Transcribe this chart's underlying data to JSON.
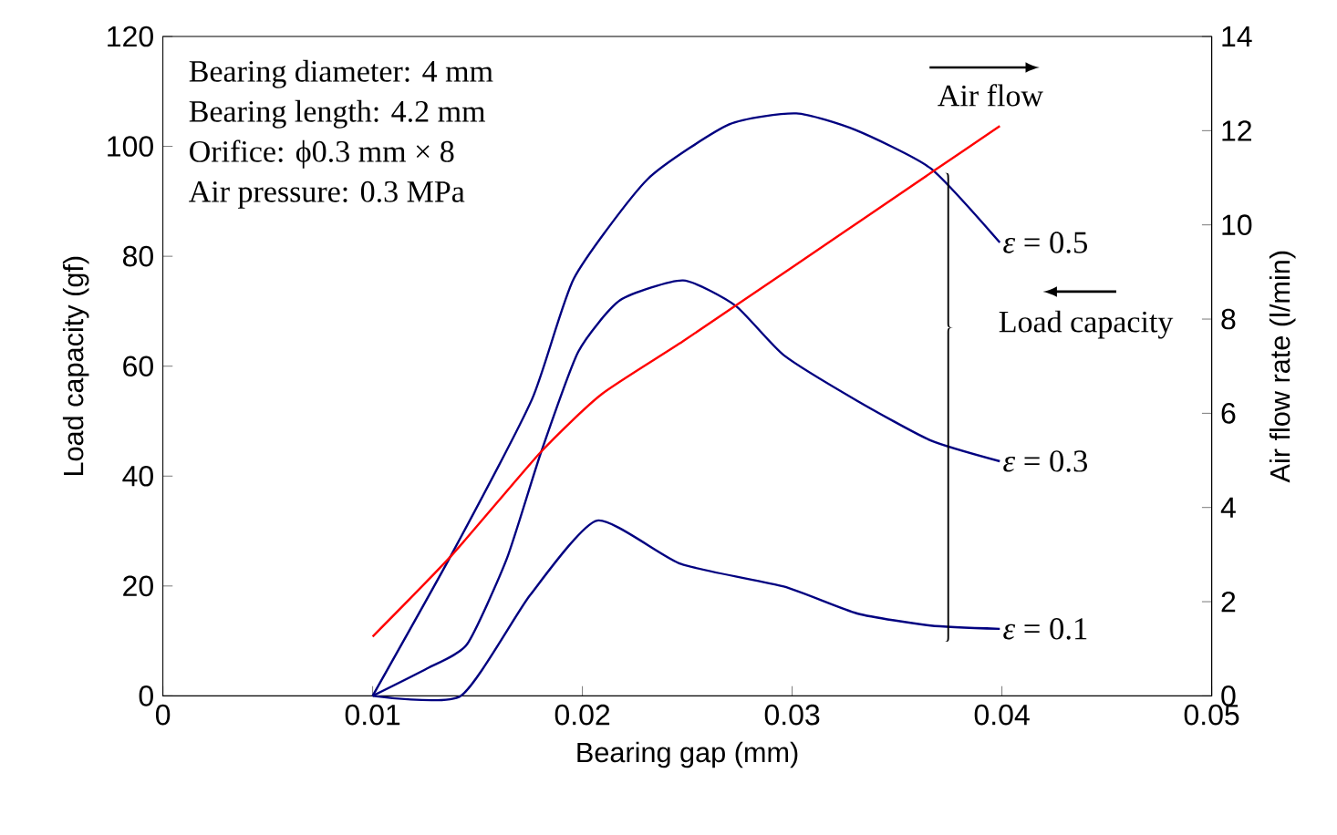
{
  "chart_data": {
    "type": "line",
    "xlabel": "Bearing gap (mm)",
    "ylabel": "Load capacity (gf)",
    "y2label": "Air flow rate (l/min)",
    "xlim": [
      0,
      0.05
    ],
    "xticks": [
      0,
      0.01,
      0.02,
      0.03,
      0.04,
      0.05
    ],
    "ylim": [
      0,
      120
    ],
    "yticks": [
      0,
      20,
      40,
      60,
      80,
      100,
      120
    ],
    "y2lim": [
      0,
      14
    ],
    "y2ticks": [
      0,
      2,
      4,
      6,
      8,
      10,
      12,
      14
    ],
    "grid": false,
    "annotations": [
      "Bearing diameter: 4 mm",
      "Bearing length: 4.2 mm",
      "Orifice: ϕ0.3 mm × 8",
      "Air pressure: 0.3 MPa",
      "Air flow",
      "Load capacity"
    ],
    "series": [
      {
        "name": "*ε* = 0.5",
        "color": "#000080",
        "x": [
          0.01,
          0.0138,
          0.0176,
          0.0196,
          0.0231,
          0.027,
          0.0302,
          0.033,
          0.0366,
          0.0399
        ],
        "values": [
          0,
          26,
          54,
          76,
          94,
          104,
          106,
          103,
          96,
          82.5
        ]
      },
      {
        "name": "*ε* = 0.3",
        "color": "#000080",
        "x": [
          0.01,
          0.0126,
          0.0145,
          0.0164,
          0.018,
          0.0198,
          0.0218,
          0.0248,
          0.0273,
          0.0296,
          0.0331,
          0.0366,
          0.0399
        ],
        "values": [
          0,
          5,
          9.4,
          25,
          44,
          62.6,
          72,
          75.6,
          71,
          62,
          53.7,
          46.5,
          42.7
        ]
      },
      {
        "name": "*ε* = 0.1",
        "color": "#000080",
        "x": [
          0.01,
          0.0142,
          0.0175,
          0.0207,
          0.0247,
          0.0296,
          0.0331,
          0.0366,
          0.0399
        ],
        "values": [
          0,
          0,
          18.3,
          31.9,
          24,
          19.9,
          15,
          12.8,
          12.2
        ]
      },
      {
        "color": "#ff0000",
        "axis": "y2",
        "x": [
          0.01,
          0.0138,
          0.018,
          0.0209,
          0.0248,
          0.03,
          0.0366,
          0.0399
        ],
        "values": [
          1.26,
          3.0,
          5.17,
          6.4,
          7.53,
          9.1,
          11.1,
          12.1
        ]
      }
    ]
  }
}
